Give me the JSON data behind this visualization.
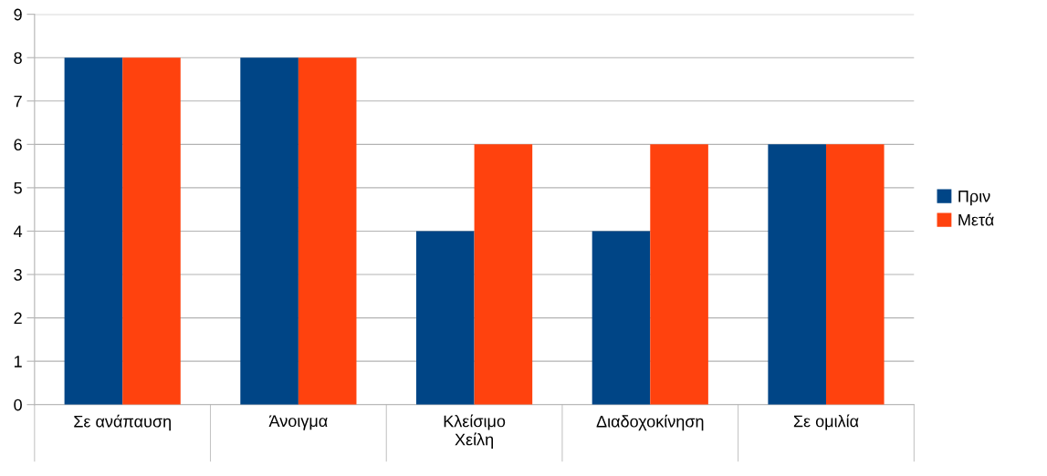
{
  "chart_data": {
    "type": "bar",
    "categories": [
      "Σε ανάπαυση",
      "Άνοιγμα",
      "Κλείσιμο\nΧείλη",
      "Διαδοχοκίνηση",
      "Σε ομιλία"
    ],
    "series": [
      {
        "name": "Πριν",
        "color": "#004586",
        "values": [
          8,
          8,
          4,
          4,
          6
        ]
      },
      {
        "name": "Μετά",
        "color": "#ff420e",
        "values": [
          8,
          8,
          6,
          6,
          6
        ]
      }
    ],
    "ylim": [
      0,
      9
    ],
    "yticks": [
      0,
      1,
      2,
      3,
      4,
      5,
      6,
      7,
      8,
      9
    ],
    "grid": "y",
    "legend": "right"
  }
}
